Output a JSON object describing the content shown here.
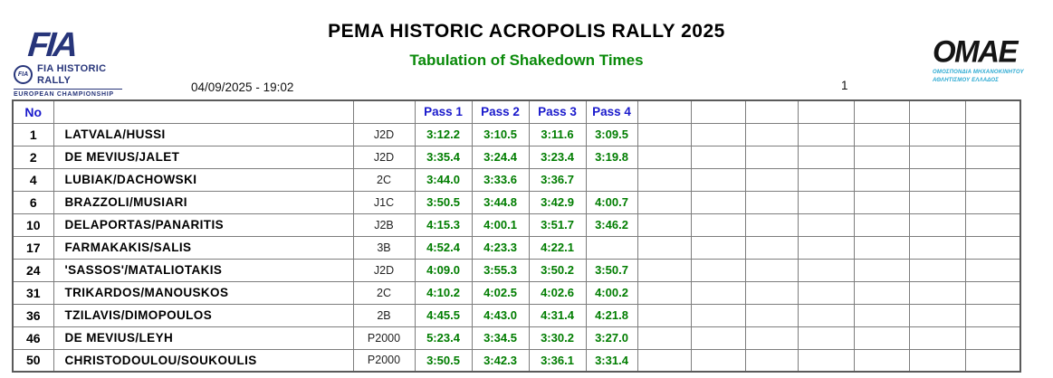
{
  "header": {
    "title": "PEMA HISTORIC ACROPOLIS RALLY 2025",
    "subtitle": "Tabulation of Shakedown Times",
    "datetime": "04/09/2025 - 19:02",
    "page_number": "1"
  },
  "logos": {
    "fia": {
      "wordmark": "FIA",
      "badge_text": "FIA",
      "series_line1": "FIA HISTORIC",
      "series_line2": "RALLY",
      "championship": "EUROPEAN CHAMPIONSHIP"
    },
    "omae": {
      "wordmark": "OMAE",
      "sub_line1": "ΟΜΟΣΠΟΝΔΙΑ ΜΗΧΑΝΟΚΙΝΗΤΟΥ",
      "sub_line2": "ΑΘΛΗΤΙΣΜΟΥ ΕΛΛΑΔΟΣ"
    }
  },
  "table": {
    "columns": {
      "no": "No",
      "pass1": "Pass 1",
      "pass2": "Pass 2",
      "pass3": "Pass 3",
      "pass4": "Pass 4"
    },
    "empty_column_count": 7,
    "rows": [
      {
        "no": "1",
        "crew": "LATVALA/HUSSI",
        "class": "J2D",
        "passes": [
          "3:12.2",
          "3:10.5",
          "3:11.6",
          "3:09.5"
        ]
      },
      {
        "no": "2",
        "crew": "DE MEVIUS/JALET",
        "class": "J2D",
        "passes": [
          "3:35.4",
          "3:24.4",
          "3:23.4",
          "3:19.8"
        ]
      },
      {
        "no": "4",
        "crew": "LUBIAK/DACHOWSKI",
        "class": "2C",
        "passes": [
          "3:44.0",
          "3:33.6",
          "3:36.7",
          ""
        ]
      },
      {
        "no": "6",
        "crew": "BRAZZOLI/MUSIARI",
        "class": "J1C",
        "passes": [
          "3:50.5",
          "3:44.8",
          "3:42.9",
          "4:00.7"
        ]
      },
      {
        "no": "10",
        "crew": "DELAPORTAS/PANARITIS",
        "class": "J2B",
        "passes": [
          "4:15.3",
          "4:00.1",
          "3:51.7",
          "3:46.2"
        ]
      },
      {
        "no": "17",
        "crew": "FARMAKAKIS/SALIS",
        "class": "3B",
        "passes": [
          "4:52.4",
          "4:23.3",
          "4:22.1",
          ""
        ]
      },
      {
        "no": "24",
        "crew": "'SASSOS'/MATALIOTAKIS",
        "class": "J2D",
        "passes": [
          "4:09.0",
          "3:55.3",
          "3:50.2",
          "3:50.7"
        ]
      },
      {
        "no": "31",
        "crew": "TRIKARDOS/MANOUSKOS",
        "class": "2C",
        "passes": [
          "4:10.2",
          "4:02.5",
          "4:02.6",
          "4:00.2"
        ]
      },
      {
        "no": "36",
        "crew": "TZILAVIS/DIMOPOULOS",
        "class": "2B",
        "passes": [
          "4:45.5",
          "4:43.0",
          "4:31.4",
          "4:21.8"
        ]
      },
      {
        "no": "46",
        "crew": "DE MEVIUS/LEYH",
        "class": "P2000",
        "passes": [
          "5:23.4",
          "3:34.5",
          "3:30.2",
          "3:27.0"
        ]
      },
      {
        "no": "50",
        "crew": "CHRISTODOULOU/SOUKOULIS",
        "class": "P2000",
        "passes": [
          "3:50.5",
          "3:42.3",
          "3:36.1",
          "3:31.4"
        ]
      }
    ]
  },
  "colors": {
    "header_blue": "#1a1acc",
    "time_green": "#007d00",
    "subtitle_green": "#0a8a0a",
    "fia_navy": "#27357a",
    "omae_cyan": "#2aa9d2",
    "grid_line": "#7d7d7d"
  }
}
